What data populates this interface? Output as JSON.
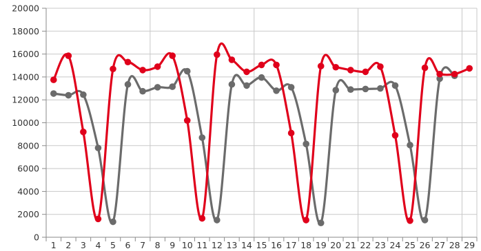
{
  "chart_data": {
    "type": "line",
    "title": "",
    "xlabel": "",
    "ylabel": "",
    "categories": [
      "1",
      "2",
      "3",
      "4",
      "5",
      "6",
      "7",
      "8",
      "9",
      "10",
      "11",
      "12",
      "13",
      "14",
      "15",
      "16",
      "17",
      "18",
      "19",
      "20",
      "21",
      "22",
      "23",
      "24",
      "25",
      "26",
      "27",
      "28",
      "29"
    ],
    "ylim": [
      0,
      20000
    ],
    "yticks": [
      "0",
      "2000",
      "4000",
      "6000",
      "8000",
      "10000",
      "12000",
      "14000",
      "16000",
      "18000",
      "20000"
    ],
    "grid": true,
    "legend": "none",
    "series": [
      {
        "color": "#6b6b6b",
        "values": [
          12550,
          12400,
          12450,
          7800,
          1350,
          13350,
          12750,
          13100,
          13150,
          14500,
          8700,
          1500,
          13350,
          13250,
          13950,
          12800,
          13100,
          8150,
          1250,
          12850,
          12900,
          12950,
          13000,
          13250,
          8050,
          1500,
          13850,
          14100,
          null
        ]
      },
      {
        "color": "#e0001b",
        "values": [
          13750,
          15850,
          9200,
          1600,
          14700,
          15300,
          14600,
          14900,
          15850,
          10200,
          1650,
          15950,
          15500,
          14450,
          15050,
          15050,
          9100,
          1500,
          14950,
          14850,
          14600,
          14450,
          14900,
          8900,
          1450,
          14800,
          14250,
          14250,
          14750
        ]
      }
    ]
  }
}
